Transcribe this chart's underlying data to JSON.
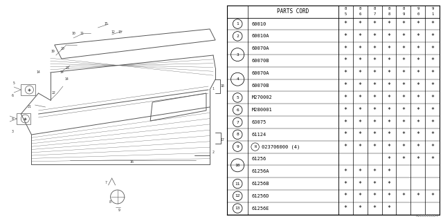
{
  "bg_color": "#ffffff",
  "col_header": "PARTS CORD",
  "year_cols": [
    "85",
    "86",
    "87",
    "88",
    "89",
    "90",
    "91"
  ],
  "rows": [
    {
      "num": "1",
      "circle": true,
      "N": false,
      "parts": [
        "60010"
      ],
      "marks": [
        "*",
        "*",
        "*",
        "*",
        "*",
        "*",
        "*"
      ]
    },
    {
      "num": "2",
      "circle": true,
      "N": false,
      "parts": [
        "60010A"
      ],
      "marks": [
        "*",
        "*",
        "*",
        "*",
        "*",
        "*",
        "*"
      ]
    },
    {
      "num": "3",
      "circle": true,
      "N": false,
      "parts": [
        "60070A",
        "60070B"
      ],
      "marks": [
        "*",
        "*",
        "*",
        "*",
        "*",
        "*",
        "*"
      ]
    },
    {
      "num": "4",
      "circle": true,
      "N": false,
      "parts": [
        "60070A",
        "60070B"
      ],
      "marks": [
        "*",
        "*",
        "*",
        "*",
        "*",
        "*",
        "*"
      ]
    },
    {
      "num": "5",
      "circle": true,
      "N": false,
      "parts": [
        "M270002"
      ],
      "marks": [
        "*",
        "*",
        "*",
        "*",
        "*",
        "*",
        "*"
      ]
    },
    {
      "num": "6",
      "circle": true,
      "N": false,
      "parts": [
        "M280001"
      ],
      "marks": [
        "*",
        "*",
        "*",
        "*",
        "*",
        "*",
        "*"
      ]
    },
    {
      "num": "7",
      "circle": true,
      "N": false,
      "parts": [
        "63075"
      ],
      "marks": [
        "*",
        "*",
        "*",
        "*",
        "*",
        "*",
        "*"
      ]
    },
    {
      "num": "8",
      "circle": true,
      "N": false,
      "parts": [
        "61124"
      ],
      "marks": [
        "*",
        "*",
        "*",
        "*",
        "*",
        "*",
        "*"
      ]
    },
    {
      "num": "9",
      "circle": true,
      "N": true,
      "parts": [
        "023706000 (4)"
      ],
      "marks": [
        "*",
        "*",
        "*",
        "*",
        "*",
        "*",
        "*"
      ]
    },
    {
      "num": "10",
      "circle": true,
      "N": false,
      "parts": [
        "61256",
        "61256A"
      ],
      "marks_per_part": [
        [
          "",
          "",
          "",
          "*",
          "*",
          "*",
          "*"
        ],
        [
          "*",
          "*",
          "*",
          "*",
          "",
          "",
          ""
        ]
      ]
    },
    {
      "num": "11",
      "circle": true,
      "N": false,
      "parts": [
        "61256B"
      ],
      "marks": [
        "*",
        "*",
        "*",
        "*",
        "",
        "",
        ""
      ]
    },
    {
      "num": "12",
      "circle": true,
      "N": false,
      "parts": [
        "61256D"
      ],
      "marks": [
        "*",
        "*",
        "*",
        "*",
        "*",
        "*",
        "*"
      ]
    },
    {
      "num": "13",
      "circle": true,
      "N": false,
      "parts": [
        "61256E"
      ],
      "marks": [
        "*",
        "*",
        "*",
        "*",
        "",
        "",
        ""
      ]
    }
  ],
  "footer": "A600000084",
  "line_color": "#000000",
  "text_color": "#000000",
  "draw_color": "#555555",
  "font_size": 5.5
}
